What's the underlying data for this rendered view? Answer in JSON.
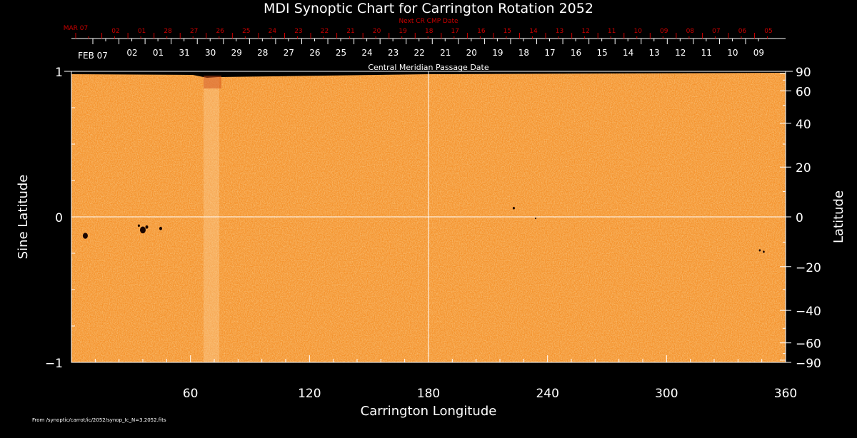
{
  "chart_data": {
    "type": "heatmap",
    "title": "MDI Synoptic Chart for Carrington Rotation 2052",
    "xlabel": "Carrington Longitude",
    "ylabel_left": "Sine Latitude",
    "ylabel_right": "Latitude",
    "xlim": [
      0,
      360
    ],
    "ylim": [
      -1,
      1
    ],
    "x_ticks": [
      60,
      120,
      180,
      240,
      300,
      360
    ],
    "y_ticks_left": [
      {
        "v": 1,
        "label": "1"
      },
      {
        "v": 0,
        "label": "0"
      },
      {
        "v": -1,
        "label": "−1"
      }
    ],
    "y_ticks_right": [
      90,
      60,
      40,
      20,
      0,
      -20,
      -40,
      -60,
      -90
    ],
    "y_tick_right_labels": [
      "90",
      "60",
      "40",
      "20",
      "0",
      "−20",
      "−40",
      "−60",
      "−90"
    ],
    "top_axis_label": "Central Meridian Passage Date",
    "top_axis_start": "FEB 07",
    "top_axis_dates": [
      "02",
      "01",
      "31",
      "30",
      "29",
      "28",
      "27",
      "26",
      "25",
      "24",
      "23",
      "22",
      "21",
      "20",
      "19",
      "18",
      "17",
      "16",
      "15",
      "14",
      "13",
      "12",
      "11",
      "10",
      "09"
    ],
    "next_cr_label": "Next CR CMP Date",
    "next_cr_start": "MAR 07",
    "next_cr_dates": [
      "02",
      "01",
      "28",
      "27",
      "26",
      "25",
      "24",
      "23",
      "22",
      "21",
      "20",
      "19",
      "18",
      "17",
      "16",
      "15",
      "14",
      "13",
      "12",
      "11",
      "10",
      "09",
      "08",
      "07",
      "06",
      "05"
    ],
    "sunspots": [
      {
        "lon": 7,
        "sinlat": -0.13,
        "size": 3.5
      },
      {
        "lon": 36,
        "sinlat": -0.09,
        "size": 4
      },
      {
        "lon": 34,
        "sinlat": -0.06,
        "size": 1.5
      },
      {
        "lon": 38,
        "sinlat": -0.07,
        "size": 2
      },
      {
        "lon": 45,
        "sinlat": -0.08,
        "size": 2
      },
      {
        "lon": 223,
        "sinlat": 0.06,
        "size": 1.5
      },
      {
        "lon": 234,
        "sinlat": -0.01,
        "size": 1
      },
      {
        "lon": 347,
        "sinlat": -0.23,
        "size": 1.3
      },
      {
        "lon": 349,
        "sinlat": -0.24,
        "size": 1.3
      }
    ],
    "colors": {
      "map": "#f59a3c",
      "grid": "#ffffff",
      "axis_red": "#cc0000",
      "spot": "#1a0500"
    },
    "grid": true
  },
  "footer": "From /synoptic/carrot/ic/2052/synop_Ic_N=3.2052.fits"
}
